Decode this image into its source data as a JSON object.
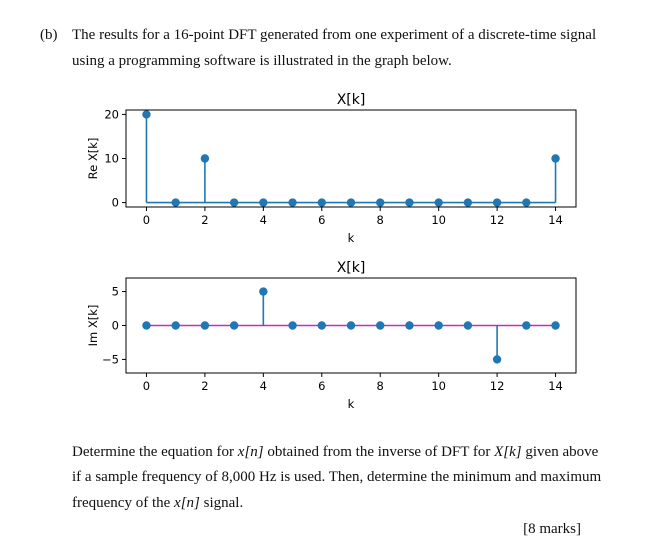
{
  "question": {
    "label": "(b)",
    "intro_line1": "The results for a 16-point DFT generated from one experiment of a discrete-time signal",
    "intro_line2": "using a programming software is illustrated in the graph below.",
    "task_line1_a": "Determine the equation for ",
    "task_line1_x": "x[n]",
    "task_line1_b": " obtained from the inverse of DFT for ",
    "task_line1_X": "X[k]",
    "task_line1_c": " given above",
    "task_line2": "if a sample frequency of 8,000 Hz is used. Then, determine the minimum and maximum",
    "task_line3_a": "frequency of the ",
    "task_line3_x": "x[n]",
    "task_line3_b": " signal.",
    "marks": "[8 marks]"
  },
  "chart_data": [
    {
      "type": "stem",
      "title": "X[k]",
      "xlabel": "k",
      "ylabel": "Re X[k]",
      "x": [
        0,
        1,
        2,
        3,
        4,
        5,
        6,
        7,
        8,
        9,
        10,
        11,
        12,
        13,
        14
      ],
      "y": [
        20,
        0,
        10,
        0,
        0,
        0,
        0,
        0,
        0,
        0,
        0,
        0,
        0,
        0,
        10
      ],
      "xticks": [
        0,
        2,
        4,
        6,
        8,
        10,
        12,
        14
      ],
      "yticks": [
        0,
        10,
        20
      ],
      "xlim": [
        -0.7,
        14.7
      ],
      "ylim": [
        -1,
        21
      ],
      "baseline": 0,
      "colors": {
        "stem": "#1f77b4",
        "baseline": "#1f77b4"
      }
    },
    {
      "type": "stem",
      "title": "X[k]",
      "xlabel": "k",
      "ylabel": "Im X[k]",
      "x": [
        0,
        1,
        2,
        3,
        4,
        5,
        6,
        7,
        8,
        9,
        10,
        11,
        12,
        13,
        14
      ],
      "y": [
        0,
        0,
        0,
        0,
        5,
        0,
        0,
        0,
        0,
        0,
        0,
        0,
        -5,
        0,
        0
      ],
      "xticks": [
        0,
        2,
        4,
        6,
        8,
        10,
        12,
        14
      ],
      "yticks": [
        -5,
        0,
        5
      ],
      "ytick_labels": [
        "−5",
        "0",
        "5"
      ],
      "xlim": [
        -0.7,
        14.7
      ],
      "ylim": [
        -7,
        7
      ],
      "baseline": 0,
      "colors": {
        "stem": "#1f77b4",
        "baseline": "#c030c0"
      }
    }
  ]
}
